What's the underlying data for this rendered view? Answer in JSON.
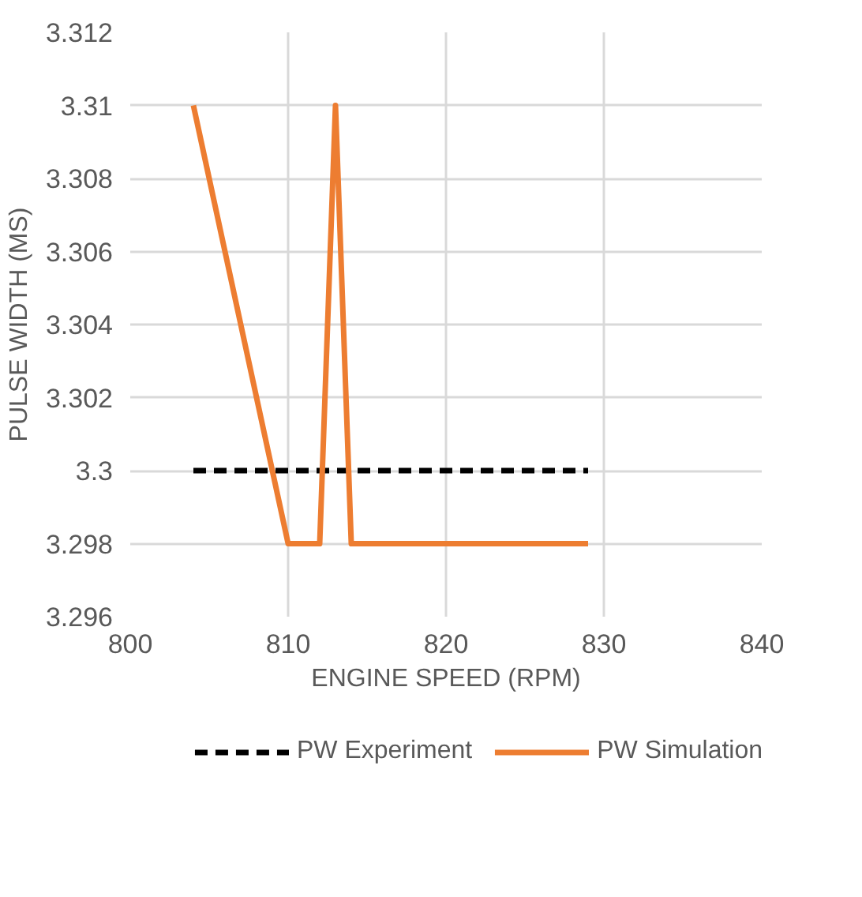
{
  "chart_data": {
    "type": "line",
    "xlabel": "ENGINE SPEED (RPM)",
    "ylabel": "PULSE WIDTH (MS)",
    "xlim": [
      800,
      840
    ],
    "xticks": [
      800,
      810,
      820,
      830,
      840
    ],
    "ylim": [
      3.296,
      3.312
    ],
    "yticks": [
      3.296,
      3.298,
      3.3,
      3.302,
      3.304,
      3.306,
      3.308,
      3.31,
      3.312
    ],
    "grid": true,
    "legend": "bottom",
    "series": [
      {
        "name": "PW Experiment",
        "color": "#000000",
        "line_style": "dashed",
        "x": [
          804,
          829
        ],
        "values": [
          3.3,
          3.3
        ]
      },
      {
        "name": "PW Simulation",
        "color": "#ed7d31",
        "line_style": "solid",
        "x": [
          804,
          810,
          812,
          813,
          814,
          829
        ],
        "values": [
          3.31,
          3.298,
          3.298,
          3.31,
          3.298,
          3.298
        ]
      }
    ]
  }
}
